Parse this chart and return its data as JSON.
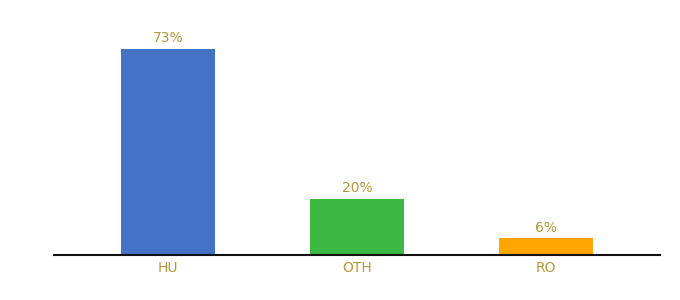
{
  "categories": [
    "HU",
    "OTH",
    "RO"
  ],
  "values": [
    73,
    20,
    6
  ],
  "bar_colors": [
    "#4472C4",
    "#3CB843",
    "#FFA500"
  ],
  "label_color": "#B8973A",
  "axis_label_color": "#B8973A",
  "background_color": "#ffffff",
  "ylim": [
    0,
    85
  ],
  "bar_width": 0.5,
  "value_labels": [
    "73%",
    "20%",
    "6%"
  ],
  "label_fontsize": 10,
  "tick_fontsize": 10,
  "spine_color": "#111111",
  "spine_linewidth": 1.5
}
